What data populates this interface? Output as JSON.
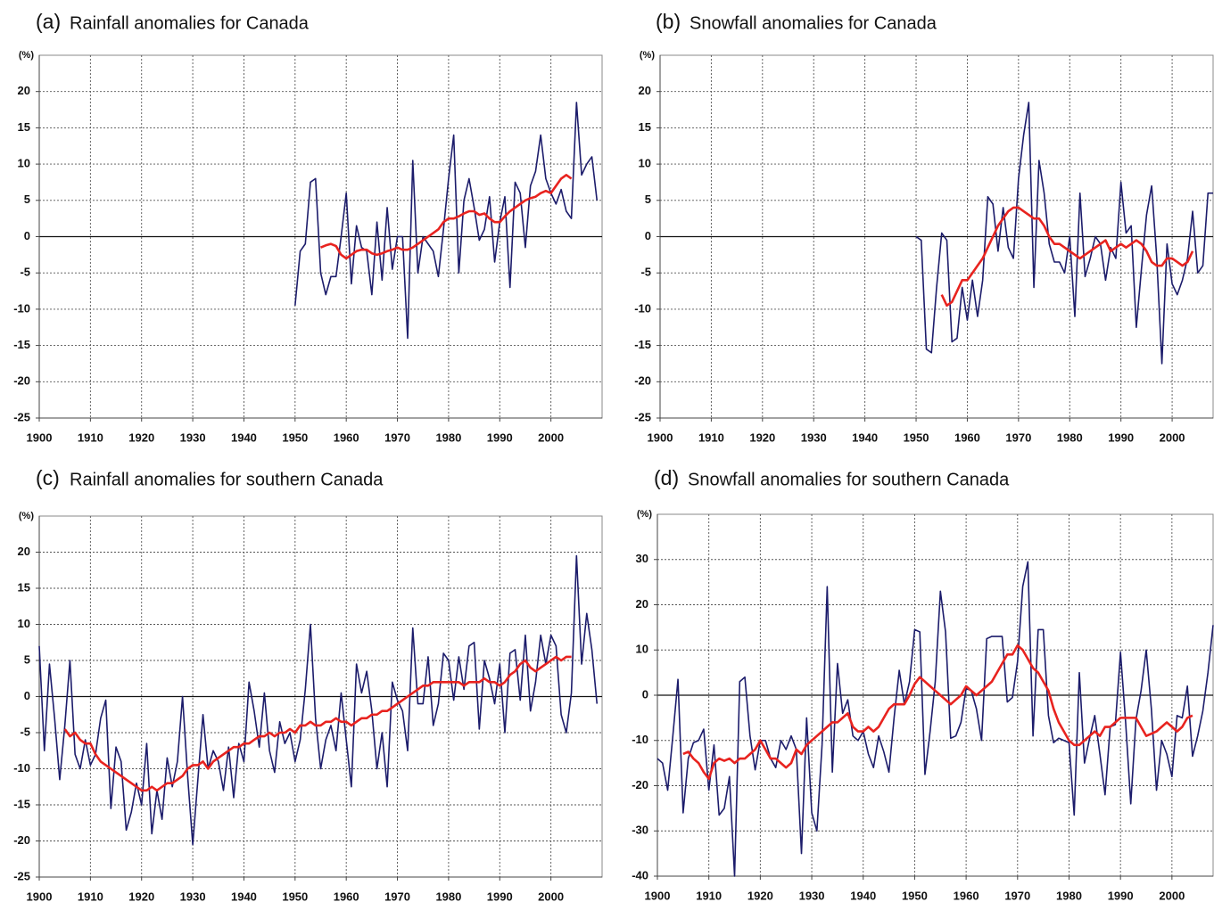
{
  "chart_data": [
    {
      "type": "line",
      "panel": "(a)",
      "title": "Rainfall anomalies for Canada",
      "ylabel": "(%)",
      "x": [
        1950,
        1951,
        1952,
        1953,
        1954,
        1955,
        1956,
        1957,
        1958,
        1959,
        1960,
        1961,
        1962,
        1963,
        1964,
        1965,
        1966,
        1967,
        1968,
        1969,
        1970,
        1971,
        1972,
        1973,
        1974,
        1975,
        1976,
        1977,
        1978,
        1979,
        1980,
        1981,
        1982,
        1983,
        1984,
        1985,
        1986,
        1987,
        1988,
        1989,
        1990,
        1991,
        1992,
        1993,
        1994,
        1995,
        1996,
        1997,
        1998,
        1999,
        2000,
        2001,
        2002,
        2003,
        2004,
        2005,
        2006,
        2007,
        2008,
        2009
      ],
      "series": [
        {
          "color": "#1c1c6b",
          "values": [
            -9.5,
            -2,
            -1,
            7.5,
            8,
            -5,
            -8,
            -5.5,
            -5.5,
            0,
            6,
            -6.5,
            1.5,
            -1.5,
            -2,
            -8,
            2,
            -6,
            4,
            -4.5,
            0,
            0,
            -14,
            10.5,
            -5,
            0,
            -1,
            -2,
            -5.5,
            1,
            8,
            14,
            -5,
            5,
            8,
            4,
            -0.5,
            1,
            5.5,
            -3.5,
            2,
            5.5,
            -7,
            7.5,
            6,
            -1.5,
            7,
            9,
            14,
            8,
            6,
            4.5,
            6.5,
            3.5,
            2.5,
            18.5,
            8.5,
            10,
            11,
            5
          ]
        },
        {
          "color": "#e8231f",
          "values": [
            null,
            null,
            null,
            null,
            null,
            -1.5,
            -1.2,
            -1,
            -1.3,
            -2.5,
            -3,
            -2.5,
            -2,
            -1.8,
            -1.8,
            -2.3,
            -2.5,
            -2.3,
            -2,
            -1.8,
            -1.5,
            -1.8,
            -1.8,
            -1.5,
            -1,
            -0.5,
            0,
            0.5,
            1,
            2,
            2.5,
            2.5,
            2.8,
            3.2,
            3.5,
            3.5,
            3,
            3.2,
            2.5,
            2,
            2,
            2.8,
            3.5,
            4,
            4.5,
            5,
            5.3,
            5.5,
            6,
            6.3,
            6,
            7,
            8,
            8.5,
            8,
            null,
            null,
            null,
            null,
            null
          ]
        }
      ],
      "xlim": [
        1900,
        2010
      ],
      "xticks": [
        1900,
        1910,
        1920,
        1930,
        1940,
        1950,
        1960,
        1970,
        1980,
        1990,
        2000
      ],
      "ylim": [
        -25,
        25
      ],
      "yticks": [
        -25,
        -20,
        -15,
        -10,
        -5,
        0,
        5,
        10,
        15,
        20
      ],
      "grid": true
    },
    {
      "type": "line",
      "panel": "(b)",
      "title": "Snowfall anomalies for Canada",
      "ylabel": "(%)",
      "x": [
        1950,
        1951,
        1952,
        1953,
        1954,
        1955,
        1956,
        1957,
        1958,
        1959,
        1960,
        1961,
        1962,
        1963,
        1964,
        1965,
        1966,
        1967,
        1968,
        1969,
        1970,
        1971,
        1972,
        1973,
        1974,
        1975,
        1976,
        1977,
        1978,
        1979,
        1980,
        1981,
        1982,
        1983,
        1984,
        1985,
        1986,
        1987,
        1988,
        1989,
        1990,
        1991,
        1992,
        1993,
        1994,
        1995,
        1996,
        1997,
        1998,
        1999,
        2000,
        2001,
        2002,
        2003,
        2004,
        2005,
        2006,
        2007,
        2008
      ],
      "series": [
        {
          "color": "#1c1c6b",
          "values": [
            0,
            -0.5,
            -15.5,
            -16,
            -7,
            0.5,
            -0.5,
            -14.5,
            -14,
            -7,
            -11.5,
            -6,
            -11,
            -6,
            5.5,
            4.5,
            -2,
            4,
            -1.5,
            -3,
            8,
            14,
            18.5,
            -7,
            10.5,
            6,
            -1,
            -3.5,
            -3.5,
            -5,
            0,
            -11,
            6,
            -5.5,
            -3,
            0,
            -1,
            -6,
            -1.5,
            -3,
            7.5,
            0.5,
            1.5,
            -12.5,
            -4.5,
            3,
            7,
            -3,
            -17.5,
            -1,
            -6.5,
            -8,
            -6,
            -3,
            3.5,
            -5,
            -4,
            6,
            6
          ]
        },
        {
          "color": "#e8231f",
          "values": [
            null,
            null,
            null,
            null,
            null,
            -8,
            -9.5,
            -9,
            -7.5,
            -6,
            -6,
            -5,
            -4,
            -3,
            -1.5,
            0,
            1.5,
            2.5,
            3.5,
            4,
            4,
            3.5,
            3,
            2.5,
            2.5,
            1.5,
            0,
            -1,
            -1,
            -1.5,
            -2,
            -2.5,
            -3,
            -2.5,
            -2,
            -1.5,
            -1,
            -0.5,
            -2,
            -1.5,
            -1,
            -1.5,
            -1,
            -0.5,
            -1,
            -2,
            -3.5,
            -4,
            -4,
            -3,
            -3,
            -3.5,
            -4,
            -3.5,
            -2,
            null,
            null,
            null,
            null
          ]
        }
      ],
      "xlim": [
        1900,
        2008
      ],
      "xticks": [
        1900,
        1910,
        1920,
        1930,
        1940,
        1950,
        1960,
        1970,
        1980,
        1990,
        2000
      ],
      "ylim": [
        -25,
        25
      ],
      "yticks": [
        -25,
        -20,
        -15,
        -10,
        -5,
        0,
        5,
        10,
        15,
        20
      ],
      "grid": true
    },
    {
      "type": "line",
      "panel": "(c)",
      "title": "Rainfall anomalies for southern Canada",
      "ylabel": "(%)",
      "x": [
        1900,
        1901,
        1902,
        1903,
        1904,
        1905,
        1906,
        1907,
        1908,
        1909,
        1910,
        1911,
        1912,
        1913,
        1914,
        1915,
        1916,
        1917,
        1918,
        1919,
        1920,
        1921,
        1922,
        1923,
        1924,
        1925,
        1926,
        1927,
        1928,
        1929,
        1930,
        1931,
        1932,
        1933,
        1934,
        1935,
        1936,
        1937,
        1938,
        1939,
        1940,
        1941,
        1942,
        1943,
        1944,
        1945,
        1946,
        1947,
        1948,
        1949,
        1950,
        1951,
        1952,
        1953,
        1954,
        1955,
        1956,
        1957,
        1958,
        1959,
        1960,
        1961,
        1962,
        1963,
        1964,
        1965,
        1966,
        1967,
        1968,
        1969,
        1970,
        1971,
        1972,
        1973,
        1974,
        1975,
        1976,
        1977,
        1978,
        1979,
        1980,
        1981,
        1982,
        1983,
        1984,
        1985,
        1986,
        1987,
        1988,
        1989,
        1990,
        1991,
        1992,
        1993,
        1994,
        1995,
        1996,
        1997,
        1998,
        1999,
        2000,
        2001,
        2002,
        2003,
        2004,
        2005,
        2006,
        2007,
        2008,
        2009
      ],
      "series": [
        {
          "color": "#1c1c6b",
          "values": [
            7,
            -7.5,
            4.5,
            -3,
            -11.5,
            -4,
            5,
            -8,
            -10,
            -6,
            -9.5,
            -8,
            -3,
            -0.5,
            -15.5,
            -7,
            -9,
            -18.5,
            -16,
            -12,
            -15,
            -6.5,
            -19,
            -13,
            -17,
            -8.5,
            -12.5,
            -9,
            0,
            -11,
            -20.5,
            -11.5,
            -2.5,
            -10,
            -7.5,
            -9,
            -13,
            -7,
            -14,
            -6.5,
            -9,
            2,
            -2,
            -7,
            0.5,
            -7.5,
            -10.5,
            -3.5,
            -6.5,
            -5,
            -9,
            -6,
            1,
            10,
            -3,
            -10,
            -6,
            -4,
            -7.5,
            0.5,
            -6,
            -12.5,
            4.5,
            0.5,
            3.5,
            -2,
            -10,
            -5,
            -12.5,
            2,
            -0.5,
            -2,
            -7.5,
            9.5,
            -1,
            -1,
            5.5,
            -4,
            -1,
            6,
            5,
            -0.5,
            5.5,
            1,
            7,
            7.5,
            -4.5,
            5,
            2.5,
            -1,
            4.5,
            -5,
            6,
            6.5,
            -0.5,
            8.5,
            -2,
            2,
            8.5,
            4.5,
            8.5,
            7,
            -2.5,
            -5,
            0.5,
            19.5,
            4.5,
            11.5,
            6.5,
            -1
          ]
        },
        {
          "color": "#e8231f",
          "values": [
            null,
            null,
            null,
            null,
            null,
            -4.5,
            -5.5,
            -5,
            -6,
            -6.5,
            -6.5,
            -8,
            -9,
            -9.5,
            -10,
            -10.5,
            -11,
            -11.5,
            -12,
            -12.5,
            -13,
            -13,
            -12.5,
            -13,
            -12.5,
            -12,
            -12,
            -11.5,
            -11,
            -10,
            -9.5,
            -9.5,
            -9,
            -10,
            -9,
            -8.5,
            -8,
            -7.5,
            -7,
            -7,
            -6.5,
            -6.5,
            -6,
            -5.5,
            -5.5,
            -5,
            -5.5,
            -5,
            -5,
            -4.5,
            -5,
            -4,
            -4,
            -3.5,
            -4,
            -4,
            -3.5,
            -3.5,
            -3,
            -3.5,
            -3.5,
            -4,
            -3.5,
            -3,
            -3,
            -2.5,
            -2.5,
            -2,
            -2,
            -1.5,
            -1,
            -0.5,
            0,
            0.5,
            1,
            1.5,
            1.5,
            2,
            2,
            2,
            2,
            2,
            2,
            1.5,
            2,
            2,
            2,
            2.5,
            2,
            2,
            1.5,
            2,
            3,
            3.5,
            4.5,
            5,
            4,
            3.5,
            4,
            4.5,
            5,
            5.5,
            5,
            5.5,
            5.5,
            null,
            null,
            null,
            null,
            null
          ]
        }
      ],
      "xlim": [
        1900,
        2010
      ],
      "xticks": [
        1900,
        1910,
        1920,
        1930,
        1940,
        1950,
        1960,
        1970,
        1980,
        1990,
        2000
      ],
      "ylim": [
        -25,
        25
      ],
      "yticks": [
        -25,
        -20,
        -15,
        -10,
        -5,
        0,
        5,
        10,
        15,
        20
      ],
      "grid": true
    },
    {
      "type": "line",
      "panel": "(d)",
      "title": "Snowfall anomalies for southern Canada",
      "ylabel": "(%)",
      "x": [
        1900,
        1901,
        1902,
        1903,
        1904,
        1905,
        1906,
        1907,
        1908,
        1909,
        1910,
        1911,
        1912,
        1913,
        1914,
        1915,
        1916,
        1917,
        1918,
        1919,
        1920,
        1921,
        1922,
        1923,
        1924,
        1925,
        1926,
        1927,
        1928,
        1929,
        1930,
        1931,
        1932,
        1933,
        1934,
        1935,
        1936,
        1937,
        1938,
        1939,
        1940,
        1941,
        1942,
        1943,
        1944,
        1945,
        1946,
        1947,
        1948,
        1949,
        1950,
        1951,
        1952,
        1953,
        1954,
        1955,
        1956,
        1957,
        1958,
        1959,
        1960,
        1961,
        1962,
        1963,
        1964,
        1965,
        1966,
        1967,
        1968,
        1969,
        1970,
        1971,
        1972,
        1973,
        1974,
        1975,
        1976,
        1977,
        1978,
        1979,
        1980,
        1981,
        1982,
        1983,
        1984,
        1985,
        1986,
        1987,
        1988,
        1989,
        1990,
        1991,
        1992,
        1993,
        1994,
        1995,
        1996,
        1997,
        1998,
        1999,
        2000,
        2001,
        2002,
        2003,
        2004,
        2005,
        2006,
        2007,
        2008
      ],
      "series": [
        {
          "color": "#1c1c6b",
          "values": [
            -14,
            -15,
            -21,
            -9,
            3.5,
            -26,
            -14,
            -10.5,
            -10,
            -7.5,
            -21,
            -11,
            -26.5,
            -25,
            -18,
            -40,
            3,
            4,
            -9,
            -16.5,
            -10,
            -10,
            -14,
            -16,
            -10,
            -12,
            -9,
            -12,
            -35,
            -5,
            -26,
            -30,
            -11,
            24,
            -17,
            7,
            -4,
            -1,
            -9,
            -10,
            -8,
            -13,
            -16,
            -9,
            -12.5,
            -17,
            -5,
            5.5,
            -2,
            3,
            14.5,
            14,
            -17.5,
            -8,
            3,
            23,
            14,
            -9.5,
            -9,
            -6,
            1.5,
            1,
            -3,
            -10,
            12.5,
            13,
            13,
            13,
            -1.5,
            -0.5,
            7.5,
            24,
            29.5,
            -9,
            14.5,
            14.5,
            -4.5,
            -10.5,
            -9.5,
            -10,
            -10.5,
            -26.5,
            5,
            -15,
            -9.5,
            -4.5,
            -13,
            -22,
            -7,
            -6.5,
            9.5,
            -6,
            -24,
            -5.5,
            1,
            10,
            -3,
            -21,
            -10,
            -13,
            -18,
            -4.5,
            -5,
            2,
            -13.5,
            -9,
            -3.5,
            5,
            15.5
          ]
        },
        {
          "color": "#e8231f",
          "values": [
            null,
            null,
            null,
            null,
            null,
            -13,
            -12.5,
            -14,
            -15,
            -17,
            -18.5,
            -15,
            -14,
            -14.5,
            -14,
            -15,
            -14,
            -14,
            -13,
            -12,
            -10,
            -12,
            -14,
            -14,
            -15,
            -16,
            -15,
            -12,
            -13,
            -11,
            -10,
            -9,
            -8,
            -7,
            -6,
            -6,
            -5,
            -4,
            -7,
            -8,
            -8,
            -7,
            -8,
            -7,
            -5,
            -3,
            -2,
            -2,
            -2,
            0,
            2.5,
            4,
            3,
            2,
            1,
            0,
            -1,
            -2,
            -1,
            0,
            2,
            1,
            0,
            1,
            2,
            3,
            5,
            7,
            9,
            9,
            11,
            10,
            8,
            6,
            5,
            3,
            1,
            -3,
            -6,
            -8,
            -10,
            -11,
            -11,
            -10,
            -9,
            -8,
            -9,
            -7,
            -7,
            -6,
            -5,
            -5,
            -5,
            -5,
            -7,
            -9,
            -8.5,
            -8,
            -7,
            -6,
            -7,
            -8,
            -7,
            -5,
            -4.5,
            null,
            null,
            null,
            null
          ]
        }
      ],
      "xlim": [
        1900,
        2008
      ],
      "xticks": [
        1900,
        1910,
        1920,
        1930,
        1940,
        1950,
        1960,
        1970,
        1980,
        1990,
        2000
      ],
      "ylim": [
        -40,
        40
      ],
      "yticks": [
        -40,
        -30,
        -20,
        -10,
        0,
        10,
        20,
        30
      ],
      "grid": true
    }
  ]
}
